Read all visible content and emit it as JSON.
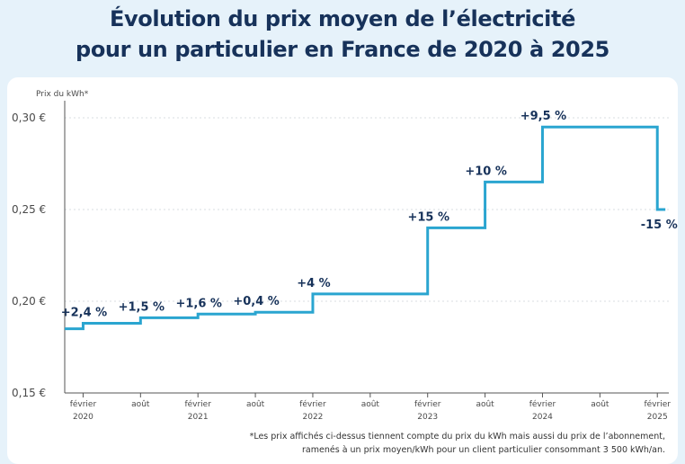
{
  "title_line1": "Évolution du prix moyen de l’électricité",
  "title_line2": "pour un particulier en France de 2020 à 2025",
  "footnote_line1": "*Les prix affichés ci-dessus tiennent compte du prix du kWh mais aussi du prix de l’abonnement,",
  "footnote_line2": "ramenés à un prix moyen/kWh pour un client particulier consommant 3 500 kWh/an.",
  "colors": {
    "line": "#2aa5d0",
    "title": "#17325a",
    "background": "#e6f2fa"
  },
  "chart_data": {
    "type": "line",
    "step": true,
    "ylabel": "Prix du kWh*",
    "ylim": [
      0.15,
      0.3
    ],
    "grid": true,
    "y_ticks": [
      {
        "value": 0.15,
        "label": "0,15 €"
      },
      {
        "value": 0.2,
        "label": "0,20 €"
      },
      {
        "value": 0.25,
        "label": "0,25 €"
      },
      {
        "value": 0.3,
        "label": "0,30 €"
      }
    ],
    "x_ticks": [
      {
        "x": 2020.08,
        "label": "février",
        "sub": "2020"
      },
      {
        "x": 2020.58,
        "label": "août",
        "sub": ""
      },
      {
        "x": 2021.08,
        "label": "février",
        "sub": "2021"
      },
      {
        "x": 2021.58,
        "label": "août",
        "sub": ""
      },
      {
        "x": 2022.08,
        "label": "février",
        "sub": "2022"
      },
      {
        "x": 2022.58,
        "label": "août",
        "sub": ""
      },
      {
        "x": 2023.08,
        "label": "février",
        "sub": "2023"
      },
      {
        "x": 2023.58,
        "label": "août",
        "sub": ""
      },
      {
        "x": 2024.08,
        "label": "février",
        "sub": "2024"
      },
      {
        "x": 2024.58,
        "label": "août",
        "sub": ""
      },
      {
        "x": 2025.08,
        "label": "février",
        "sub": "2025"
      }
    ],
    "xlim": [
      2019.92,
      2025.18
    ],
    "points": [
      {
        "x": 2019.92,
        "y": 0.185
      },
      {
        "x": 2020.08,
        "y": 0.188,
        "label": "+2,4 %"
      },
      {
        "x": 2020.58,
        "y": 0.191,
        "label": "+1,5 %"
      },
      {
        "x": 2021.08,
        "y": 0.193,
        "label": "+1,6 %"
      },
      {
        "x": 2021.58,
        "y": 0.194,
        "label": "+0,4 %"
      },
      {
        "x": 2022.08,
        "y": 0.204,
        "label": "+4 %"
      },
      {
        "x": 2023.08,
        "y": 0.24,
        "label": "+15 %"
      },
      {
        "x": 2023.58,
        "y": 0.265,
        "label": "+10 %"
      },
      {
        "x": 2024.08,
        "y": 0.295,
        "label": "+9,5 %"
      },
      {
        "x": 2025.08,
        "y": 0.25,
        "label": "-15 %"
      },
      {
        "x": 2025.15,
        "y": 0.25
      }
    ]
  }
}
